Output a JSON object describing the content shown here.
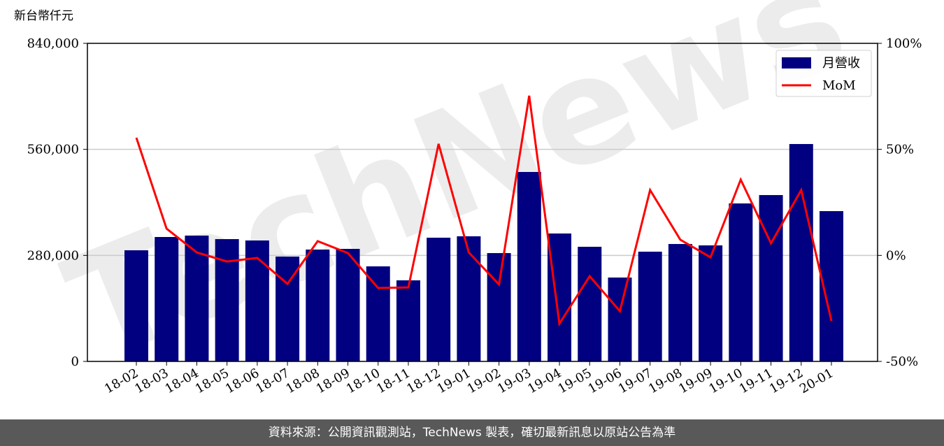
{
  "chart_data": {
    "type": "bar-line",
    "y_label": "新台幣仟元",
    "watermark": "TechNews",
    "categories": [
      "18-02",
      "18-03",
      "18-04",
      "18-05",
      "18-06",
      "18-07",
      "18-08",
      "18-09",
      "18-10",
      "18-11",
      "18-12",
      "19-01",
      "19-02",
      "19-03",
      "19-04",
      "19-05",
      "19-06",
      "19-07",
      "19-08",
      "19-09",
      "19-10",
      "19-11",
      "19-12",
      "20-01"
    ],
    "series": [
      {
        "name": "月營收",
        "kind": "bar",
        "color": "#000080",
        "values": [
          293500,
          328600,
          332300,
          323000,
          319400,
          276900,
          295400,
          297200,
          251000,
          214100,
          326700,
          330400,
          286100,
          500300,
          337800,
          302700,
          221500,
          289800,
          310100,
          306400,
          417200,
          439300,
          574100,
          396900
        ]
      },
      {
        "name": "MoM",
        "kind": "line",
        "axis": "y2",
        "color": "#ff0000",
        "values": [
          55.5,
          12.6,
          1.4,
          -2.9,
          -1.2,
          -13.4,
          6.7,
          1.1,
          -15.4,
          -15.1,
          52.6,
          1.4,
          -13.7,
          75.3,
          -32.2,
          -9.8,
          -26.3,
          30.8,
          7.4,
          -0.9,
          35.7,
          5.7,
          30.8,
          -30.9
        ]
      }
    ],
    "ylim": [
      0,
      840000
    ],
    "yticks": [
      0,
      {
        "value": 280000,
        "label": "280,000"
      },
      {
        "value": 560000,
        "label": "560,000"
      },
      {
        "value": 840000,
        "label": "840,000"
      }
    ],
    "y2lim": [
      -50,
      100
    ],
    "y2ticks": [
      {
        "value": -50,
        "label": "-50%"
      },
      {
        "value": 0,
        "label": "0%"
      },
      {
        "value": 50,
        "label": "50%"
      },
      {
        "value": 100,
        "label": "100%"
      }
    ],
    "grid": true,
    "legend": "upper right",
    "footer": "資料來源：公開資訊觀測站，TechNews 製表，確切最新訊息以原站公告為準"
  }
}
